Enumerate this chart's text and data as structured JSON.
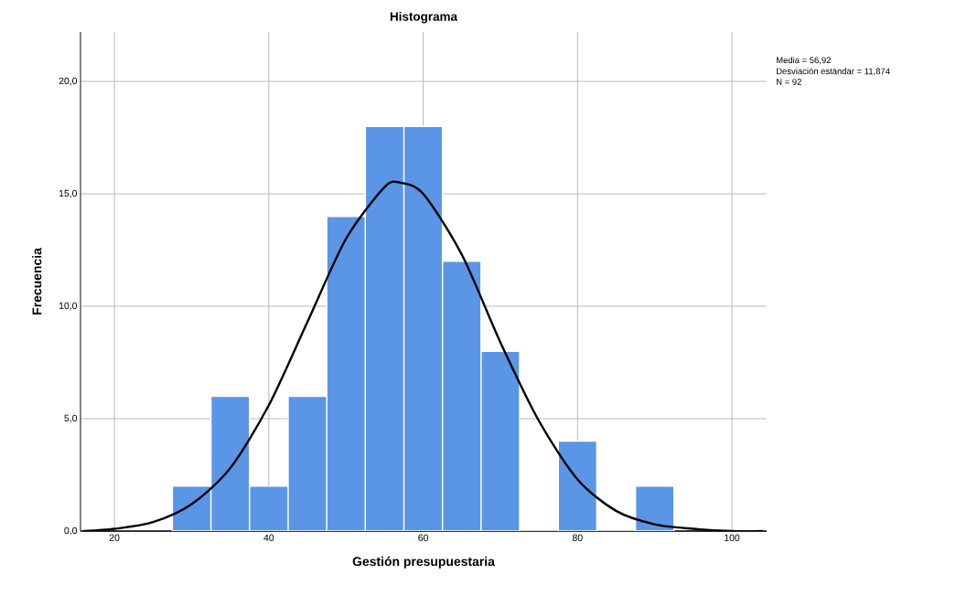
{
  "chart_data": {
    "type": "histogram",
    "title": "Histograma",
    "xlabel": "Gestión presupuestaria",
    "ylabel": "Frecuencia",
    "bins": [
      27.5,
      32.5,
      37.5,
      42.5,
      47.5,
      52.5,
      57.5,
      62.5,
      67.5,
      72.5,
      77.5,
      82.5,
      87.5,
      92.5
    ],
    "values": [
      2,
      6,
      2,
      6,
      14,
      18,
      18,
      12,
      8,
      0,
      4,
      0,
      2
    ],
    "color": "#5b95e5",
    "series": [
      {
        "type": "line",
        "color": "#000000",
        "x": [
          16,
          20,
          25,
          30,
          35,
          40,
          45,
          50,
          55,
          57,
          60,
          65,
          70,
          75,
          80,
          85,
          90,
          95,
          100,
          104
        ],
        "values": [
          0.0,
          0.1,
          0.4,
          1.2,
          2.8,
          5.6,
          9.3,
          13.0,
          15.3,
          15.5,
          15.0,
          12.3,
          8.4,
          4.9,
          2.3,
          0.9,
          0.3,
          0.1,
          0.0,
          0.0
        ]
      }
    ],
    "xlim": [
      15.6,
      104.5
    ],
    "ylim": [
      0,
      22.2
    ],
    "xticks": [
      20,
      40,
      60,
      80,
      100
    ],
    "yticks": [
      {
        "value": 0,
        "label": "0,0"
      },
      {
        "value": 5,
        "label": "5,0"
      },
      {
        "value": 10,
        "label": "10,0"
      },
      {
        "value": 15,
        "label": "15,0"
      },
      {
        "value": 20,
        "label": "20,0"
      }
    ],
    "grid": true,
    "annotations": [
      "Media = 56,92",
      "Desviación estándar = 11,874",
      "N = 92"
    ]
  }
}
